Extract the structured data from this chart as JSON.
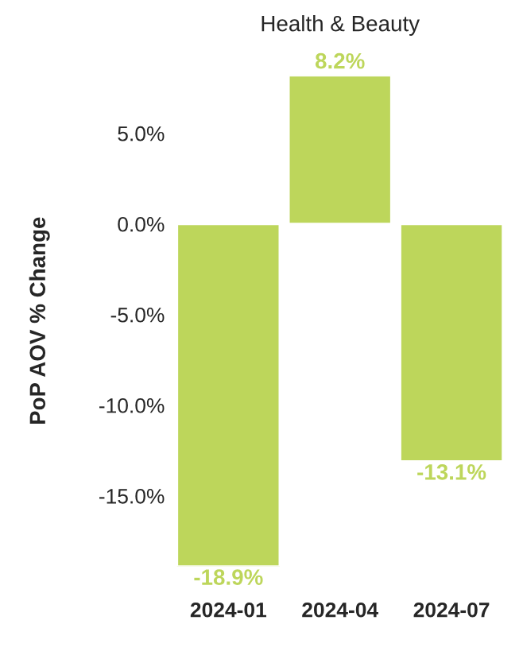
{
  "chart_data": {
    "type": "bar",
    "title": "Health & Beauty",
    "ylabel": "PoP AOV % Change",
    "categories": [
      "2024-01",
      "2024-04",
      "2024-07"
    ],
    "values": [
      -18.9,
      8.2,
      -13.1
    ],
    "color": "#bdd65b",
    "data_labels": true,
    "value_labels": [
      "-18.9%",
      "8.2%",
      "-13.1%"
    ],
    "ylim": [
      -18.9,
      8.2
    ],
    "yticks": [
      {
        "value": -15,
        "label": "-15.0%"
      },
      {
        "value": -10,
        "label": "-10.0%"
      },
      {
        "value": -5,
        "label": "-5.0%"
      },
      {
        "value": 0,
        "label": "0.0%"
      },
      {
        "value": 5,
        "label": "5.0%"
      }
    ],
    "grid": false,
    "legend": false
  }
}
